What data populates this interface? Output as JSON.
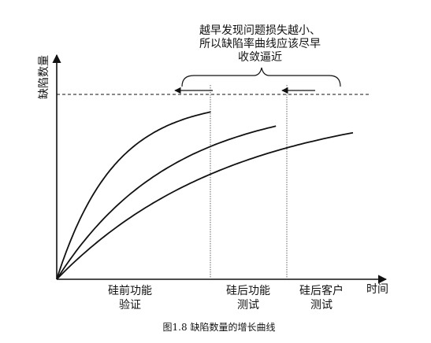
{
  "chart_data": {
    "type": "line",
    "title": "",
    "ylabel": "缺陷数量",
    "xlabel": "时间",
    "caption": "图1.8 缺陷数量的增长曲线",
    "annotation": [
      "越早发现问题损失越小、",
      "所以缺陷率曲线应该尽早",
      "收敛逼近"
    ],
    "phases": [
      {
        "lines": [
          "硅前功能",
          "验证"
        ]
      },
      {
        "lines": [
          "硅后功能",
          "测试"
        ]
      },
      {
        "lines": [
          "硅后客户",
          "测试"
        ]
      }
    ],
    "series": [
      {
        "end": 0.52,
        "rate": 5.2
      },
      {
        "end": 0.74,
        "rate": 2.6
      },
      {
        "end": 1.0,
        "rate": 1.7
      }
    ],
    "asymptote": 1.0,
    "ylim": [
      0,
      1.0
    ],
    "grid": false,
    "legend": "none"
  }
}
